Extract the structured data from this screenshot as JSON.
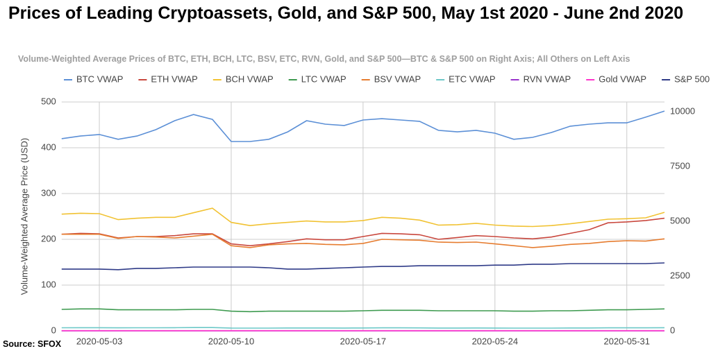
{
  "chart_data": {
    "type": "line",
    "title": "Prices of Leading Cryptoassets, Gold, and S&P 500, May 1st 2020 - June 2nd 2020",
    "subtitle": "Volume-Weighted Average Prices of BTC, ETH, BCH, LTC, BSV, ETC, RVN, Gold, and S&P 500—BTC & S&P 500 on Right Axis; All Others on Left Axis",
    "ylabel": "Volume-Weighted Average Price (USD)",
    "source": "Source: SFOX",
    "categories": [
      null,
      null,
      "2020-05-03",
      null,
      null,
      null,
      null,
      null,
      null,
      "2020-05-10",
      null,
      null,
      null,
      null,
      null,
      null,
      "2020-05-17",
      null,
      null,
      null,
      null,
      null,
      null,
      "2020-05-24",
      null,
      null,
      null,
      null,
      null,
      null,
      "2020-05-31",
      null,
      null
    ],
    "ylim": [
      0,
      500
    ],
    "yticks": [
      0,
      100,
      200,
      300,
      400,
      500
    ],
    "y2lim": [
      0,
      10443
    ],
    "y2ticks": [
      0,
      2500,
      5000,
      7500,
      10000
    ],
    "grid": true,
    "legend": "top",
    "series": [
      {
        "name": "BTC VWAP",
        "color": "#5b8fd6",
        "axis": "y2",
        "values": [
          8770,
          8890,
          8960,
          8740,
          8890,
          9180,
          9590,
          9870,
          9650,
          8640,
          8640,
          8740,
          9080,
          9590,
          9430,
          9370,
          9620,
          9680,
          9620,
          9560,
          9150,
          9080,
          9150,
          9020,
          8740,
          8830,
          9050,
          9340,
          9430,
          9490,
          9490,
          9750,
          10030
        ]
      },
      {
        "name": "ETH VWAP",
        "color": "#c9473d",
        "values": [
          211,
          213,
          212,
          203,
          206,
          206,
          208,
          212,
          212,
          190,
          186,
          190,
          195,
          201,
          199,
          199,
          206,
          213,
          212,
          210,
          200,
          204,
          208,
          206,
          203,
          201,
          205,
          213,
          221,
          236,
          238,
          241,
          246
        ]
      },
      {
        "name": "BCH VWAP",
        "color": "#f1c232",
        "values": [
          255,
          257,
          256,
          243,
          246,
          248,
          248,
          258,
          268,
          237,
          230,
          234,
          237,
          240,
          238,
          238,
          241,
          248,
          246,
          242,
          231,
          232,
          235,
          231,
          229,
          228,
          230,
          234,
          239,
          244,
          245,
          247,
          259
        ]
      },
      {
        "name": "LTC VWAP",
        "color": "#3d9a4f",
        "values": [
          47,
          48,
          48,
          46,
          46,
          46,
          46,
          47,
          47,
          43,
          42,
          43,
          43,
          43,
          43,
          43,
          44,
          45,
          45,
          45,
          44,
          44,
          44,
          44,
          43,
          43,
          44,
          44,
          45,
          46,
          46,
          47,
          48
        ]
      },
      {
        "name": "BSV VWAP",
        "color": "#e67c2f",
        "values": [
          211,
          211,
          211,
          202,
          206,
          205,
          203,
          207,
          211,
          186,
          182,
          188,
          190,
          191,
          189,
          188,
          191,
          200,
          199,
          198,
          194,
          193,
          194,
          190,
          186,
          182,
          185,
          189,
          191,
          195,
          197,
          196,
          201
        ]
      },
      {
        "name": "ETC VWAP",
        "color": "#6cc8c8",
        "values": [
          6.8,
          7,
          7,
          6.7,
          6.8,
          6.8,
          7,
          7.2,
          7.2,
          6.2,
          6,
          6.1,
          6.3,
          6.4,
          6.3,
          6.2,
          6.4,
          6.7,
          6.6,
          6.5,
          6.2,
          6.2,
          6.3,
          6.2,
          6.1,
          6,
          6.1,
          6.3,
          6.4,
          6.6,
          6.7,
          6.6,
          7
        ]
      },
      {
        "name": "RVN VWAP",
        "color": "#9933cc",
        "values": [
          0.02,
          0.02,
          0.02,
          0.02,
          0.02,
          0.02,
          0.02,
          0.02,
          0.02,
          0.02,
          0.02,
          0.02,
          0.02,
          0.02,
          0.02,
          0.02,
          0.02,
          0.02,
          0.02,
          0.02,
          0.02,
          0.02,
          0.02,
          0.02,
          0.02,
          0.02,
          0.02,
          0.02,
          0.02,
          0.02,
          0.02,
          0.02,
          0.02
        ]
      },
      {
        "name": "Gold VWAP",
        "color": "#ff33cc",
        "values": [
          0.5,
          0.5,
          0.5,
          0.5,
          0.5,
          0.5,
          0.5,
          0.5,
          0.5,
          0.5,
          0.5,
          0.5,
          0.5,
          0.5,
          0.5,
          0.5,
          0.5,
          0.5,
          0.5,
          0.5,
          0.5,
          0.5,
          0.5,
          0.5,
          0.5,
          0.5,
          0.5,
          0.5,
          0.5,
          0.5,
          0.5,
          0.5,
          0.5
        ]
      },
      {
        "name": "S&P 500 VWAP",
        "color": "#2e3a87",
        "axis": "y2",
        "values": [
          2820,
          2820,
          2820,
          2790,
          2850,
          2850,
          2880,
          2910,
          2910,
          2910,
          2910,
          2880,
          2820,
          2820,
          2850,
          2880,
          2910,
          2940,
          2940,
          2970,
          2970,
          2970,
          2970,
          3000,
          3000,
          3040,
          3040,
          3070,
          3070,
          3070,
          3070,
          3070,
          3100
        ]
      }
    ]
  }
}
